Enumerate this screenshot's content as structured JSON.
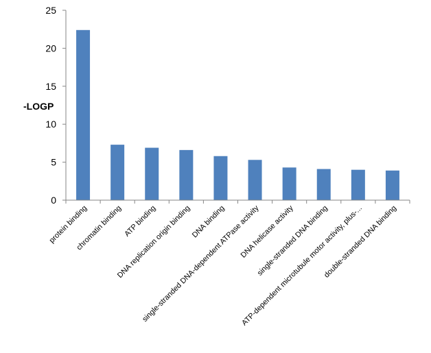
{
  "chart_data": {
    "type": "bar",
    "title": "",
    "xlabel": "",
    "ylabel": "-LOGP",
    "ylim": [
      0,
      25
    ],
    "yticks": [
      0,
      5,
      10,
      15,
      20,
      25
    ],
    "grid": false,
    "legend": "none",
    "bar_color": "#4F81BD",
    "categories": [
      "protein binding",
      "chromatin binding",
      "ATP binding",
      "DNA replication origin binding",
      "DNA binding",
      "single-stranded DNA-dependent ATPase activity",
      "DNA helicase activity",
      "single-stranded DNA binding",
      "ATP-dependent microtubule motor activity, plus-...",
      "double-stranded DNA binding"
    ],
    "values": [
      22.4,
      7.3,
      6.9,
      6.6,
      5.8,
      5.3,
      4.3,
      4.1,
      4.0,
      3.9
    ]
  }
}
